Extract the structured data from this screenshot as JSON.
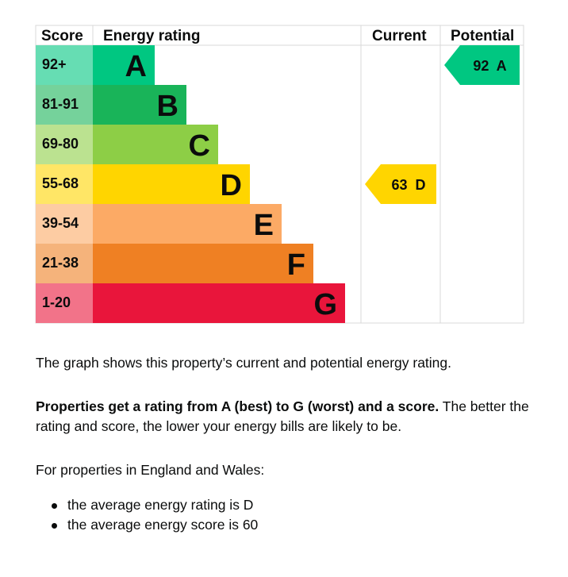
{
  "chart_data": {
    "type": "bar",
    "headers": {
      "score": "Score",
      "rating": "Energy rating",
      "current": "Current",
      "potential": "Potential"
    },
    "bands": [
      {
        "letter": "A",
        "range": "92+",
        "color": "#00c781",
        "score_color": "#66ddb3"
      },
      {
        "letter": "B",
        "range": "81-91",
        "color": "#19b459",
        "score_color": "#75d29b"
      },
      {
        "letter": "C",
        "range": "69-80",
        "color": "#8dce46",
        "score_color": "#bbe290"
      },
      {
        "letter": "D",
        "range": "55-68",
        "color": "#ffd500",
        "score_color": "#ffe666"
      },
      {
        "letter": "E",
        "range": "39-54",
        "color": "#fcaa65",
        "score_color": "#fdcca3"
      },
      {
        "letter": "F",
        "range": "21-38",
        "color": "#ef8023",
        "score_color": "#f5b37b"
      },
      {
        "letter": "G",
        "range": "1-20",
        "color": "#e9153b",
        "score_color": "#f27389"
      }
    ],
    "current": {
      "score": 63,
      "band": "D",
      "label": "63  D",
      "color": "#ffd500"
    },
    "potential": {
      "score": 92,
      "band": "A",
      "label": "92  A",
      "color": "#00c781"
    }
  },
  "text": {
    "p1": "The graph shows this property’s current and potential energy rating.",
    "p2_bold": "Properties get a rating from A (best) to G (worst) and a score.",
    "p2_rest": " The better the rating and score, the lower your energy bills are likely to be.",
    "p3": "For properties in England and Wales:",
    "bullets": [
      "the average energy rating is D",
      "the average energy score is 60"
    ]
  }
}
